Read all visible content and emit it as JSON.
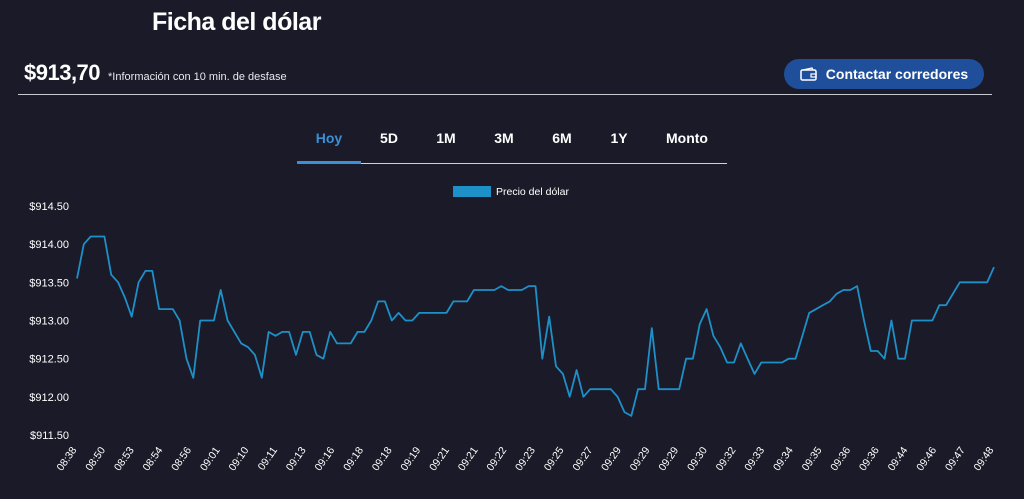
{
  "header": {
    "title": "Ficha del dólar",
    "price": "$913,70",
    "price_note": "*Información con 10 min. de desfase",
    "cta_label": "Contactar corredores",
    "cta_icon": "wallet-icon",
    "cta_color": "#1f4f9a"
  },
  "tabs": [
    {
      "label": "Hoy",
      "active": true
    },
    {
      "label": "5D",
      "active": false
    },
    {
      "label": "1M",
      "active": false
    },
    {
      "label": "3M",
      "active": false
    },
    {
      "label": "6M",
      "active": false
    },
    {
      "label": "1Y",
      "active": false
    },
    {
      "label": "Monto",
      "active": false
    }
  ],
  "chart_data": {
    "type": "line",
    "title": "",
    "xlabel": "",
    "ylabel": "",
    "legend_position": "top-center",
    "grid": false,
    "series": [
      {
        "name": "Precio del dólar",
        "color": "#1e90c8",
        "values": [
          913.55,
          914.0,
          914.1,
          914.1,
          914.1,
          913.6,
          913.5,
          913.3,
          913.05,
          913.5,
          913.65,
          913.65,
          913.15,
          913.15,
          913.15,
          913.0,
          912.5,
          912.25,
          913.0,
          913.0,
          913.0,
          913.4,
          913.0,
          912.85,
          912.7,
          912.65,
          912.55,
          912.25,
          912.85,
          912.8,
          912.85,
          912.85,
          912.55,
          912.85,
          912.85,
          912.55,
          912.5,
          912.85,
          912.7,
          912.7,
          912.7,
          912.85,
          912.85,
          913.0,
          913.25,
          913.25,
          913.0,
          913.1,
          913.0,
          913.0,
          913.1,
          913.1,
          913.1,
          913.1,
          913.1,
          913.25,
          913.25,
          913.25,
          913.4,
          913.4,
          913.4,
          913.4,
          913.45,
          913.4,
          913.4,
          913.4,
          913.45,
          913.45,
          912.5,
          913.05,
          912.4,
          912.3,
          912.0,
          912.35,
          912.0,
          912.1,
          912.1,
          912.1,
          912.1,
          912.0,
          911.8,
          911.75,
          912.1,
          912.1,
          912.9,
          912.1,
          912.1,
          912.1,
          912.1,
          912.5,
          912.5,
          912.95,
          913.15,
          912.8,
          912.65,
          912.45,
          912.45,
          912.7,
          912.5,
          912.3,
          912.45,
          912.45,
          912.45,
          912.45,
          912.5,
          912.5,
          912.8,
          913.1,
          913.15,
          913.2,
          913.25,
          913.35,
          913.4,
          913.4,
          913.45,
          913.0,
          912.6,
          912.6,
          912.5,
          913.0,
          912.5,
          912.5,
          913.0,
          913.0,
          913.0,
          913.0,
          913.2,
          913.2,
          913.35,
          913.5,
          913.5,
          913.5,
          913.5,
          913.5,
          913.7
        ]
      }
    ],
    "y_ticks": [
      "$911.50",
      "$912.00",
      "$912.50",
      "$913.00",
      "$913.50",
      "$914.00",
      "$914.50"
    ],
    "ylim": [
      911.5,
      914.5
    ],
    "x_tick_labels": [
      "08:38",
      "08:50",
      "08:53",
      "08:54",
      "08:56",
      "09:01",
      "09:10",
      "09:11",
      "09:13",
      "09:16",
      "09:18",
      "09:18",
      "09:19",
      "09:21",
      "09:21",
      "09:22",
      "09:23",
      "09:25",
      "09:27",
      "09:29",
      "09:29",
      "09:29",
      "09:30",
      "09:32",
      "09:33",
      "09:34",
      "09:35",
      "09:36",
      "09:36",
      "09:44",
      "09:46",
      "09:47",
      "09:48"
    ]
  }
}
